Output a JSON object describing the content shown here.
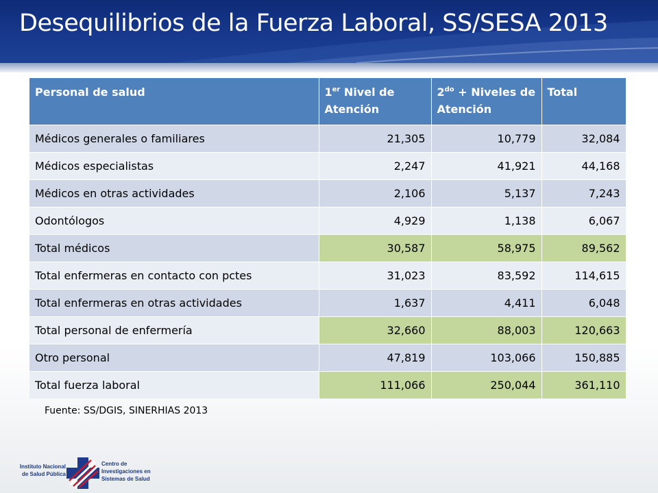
{
  "title": "Desequilibrios de la Fuerza Laboral, SS/SESA 2013",
  "table": {
    "headers": {
      "col1": "Personal de salud",
      "col2_pre": "1",
      "col2_sup": "er",
      "col2_post": " Nivel de Atención",
      "col3_pre": "2",
      "col3_sup": "do",
      "col3_post": " + Niveles de Atención",
      "col4": "Total"
    },
    "rows": [
      {
        "label": "Médicos generales o familiares",
        "n1": "21,305",
        "n2": "10,779",
        "total": "32,084"
      },
      {
        "label": "Médicos especialistas",
        "n1": "2,247",
        "n2": "41,921",
        "total": "44,168"
      },
      {
        "label": "Médicos en otras actividades",
        "n1": "2,106",
        "n2": "5,137",
        "total": "7,243"
      },
      {
        "label": "Odontólogos",
        "n1": "4,929",
        "n2": "1,138",
        "total": "6,067"
      },
      {
        "label": "Total médicos",
        "n1": "30,587",
        "n2": "58,975",
        "total": "89,562"
      },
      {
        "label": "Total enfermeras en contacto con pctes",
        "n1": "31,023",
        "n2": "83,592",
        "total": "114,615"
      },
      {
        "label": "Total enfermeras en otras actividades",
        "n1": "1,637",
        "n2": "4,411",
        "total": "6,048"
      },
      {
        "label": "Total personal de enfermería",
        "n1": "32,660",
        "n2": "88,003",
        "total": "120,663"
      },
      {
        "label": "Otro personal",
        "n1": "47,819",
        "n2": "103,066",
        "total": "150,885"
      },
      {
        "label": "Total fuerza laboral",
        "n1": "111,066",
        "n2": "250,044",
        "total": "361,110"
      }
    ]
  },
  "source": "Fuente: SS/DGIS, SINERHIAS 2013",
  "footer": {
    "left_line1": "Instituto Nacional",
    "left_line2": "de Salud Pública",
    "right_line1": "Centro de",
    "right_line2": "Investigaciones en",
    "right_line3": "Sistemas de Salud"
  },
  "colors": {
    "header_bg": "#17388c",
    "table_header": "#4f81bd",
    "row_odd": "#d0d8e8",
    "row_even": "#e9edf4",
    "highlight": "#c3d69b"
  }
}
